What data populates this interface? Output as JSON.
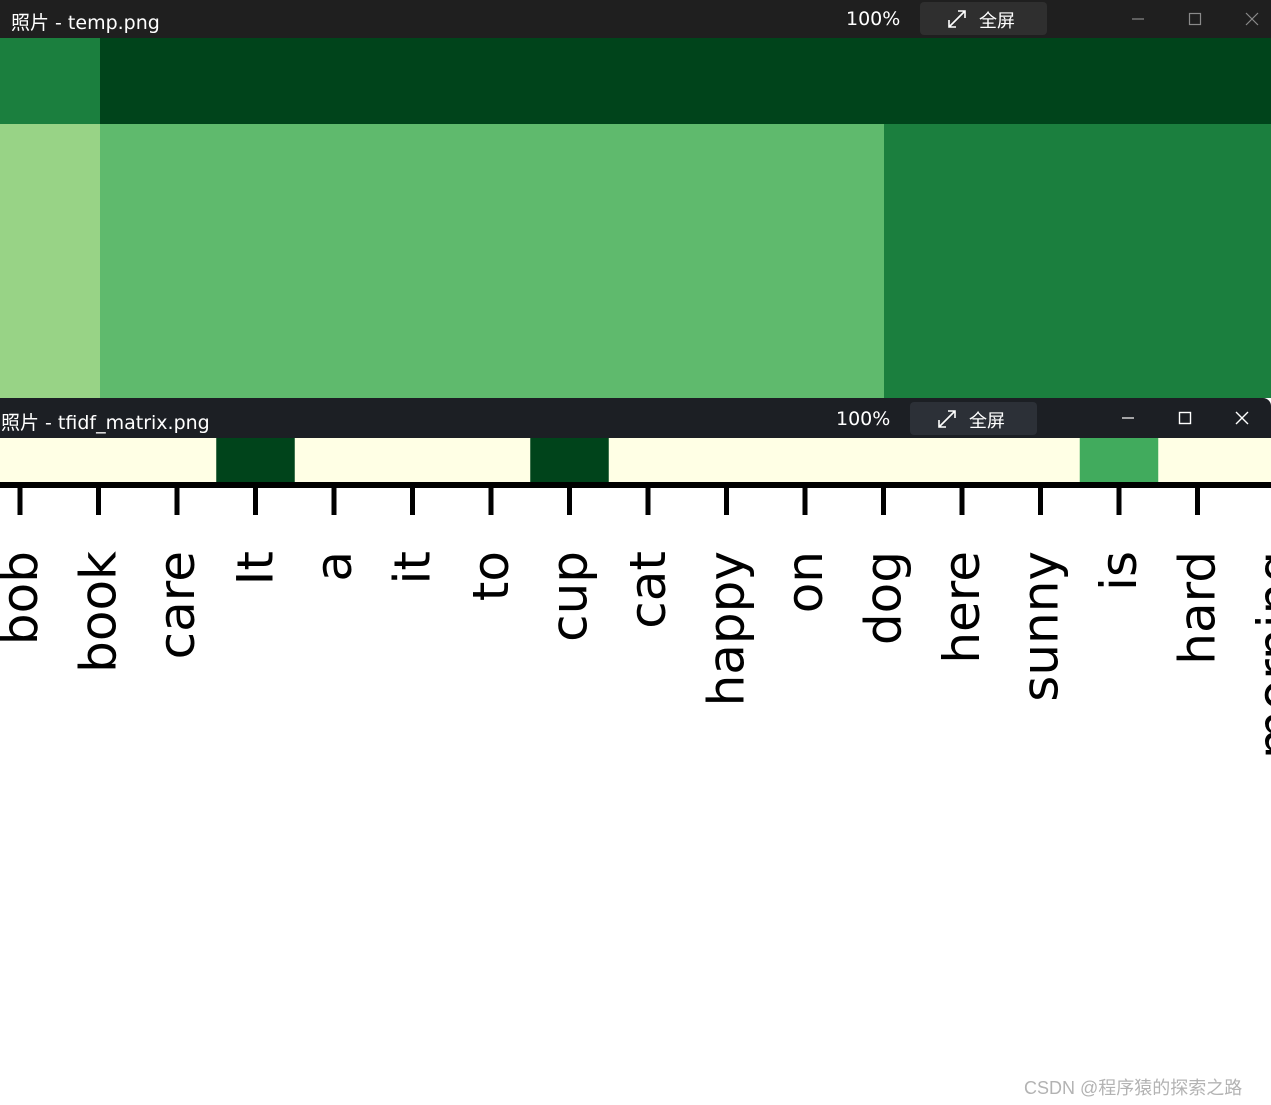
{
  "window1": {
    "title": "照片 - temp.png",
    "zoom": "100%",
    "fullscreen_label": "全屏",
    "fullscreen_icon": "expand-arrows-icon",
    "controls": [
      "minimize-icon",
      "maximize-icon",
      "close-icon"
    ]
  },
  "window2": {
    "title": "照片 - tfidf_matrix.png",
    "zoom": "100%",
    "fullscreen_label": "全屏",
    "fullscreen_icon": "expand-arrows-icon",
    "controls": [
      "minimize-icon",
      "maximize-icon",
      "close-icon"
    ]
  },
  "colors": {
    "darkest": "#00441b",
    "dark": "#1b7f3e",
    "medium": "#41ab5d",
    "light_medium": "#5fba6d",
    "light": "#98d386",
    "lightest": "#ffffe5",
    "titlebar": "#1f1f1f"
  },
  "chart_data": {
    "type": "heatmap",
    "colormap": "Greens",
    "x_tick_labels": [
      "bob",
      "book",
      "care",
      "It",
      "a",
      "it",
      "to",
      "cup",
      "cat",
      "happy",
      "on",
      "dog",
      "here",
      "sunny",
      "is",
      "hard",
      "morning"
    ],
    "visible_row_intensity": [
      0,
      0,
      0,
      1,
      0,
      0,
      0,
      1,
      0,
      0,
      0,
      0,
      0,
      0,
      0.6,
      0,
      0
    ]
  },
  "watermark": "CSDN @程序猿的探索之路"
}
